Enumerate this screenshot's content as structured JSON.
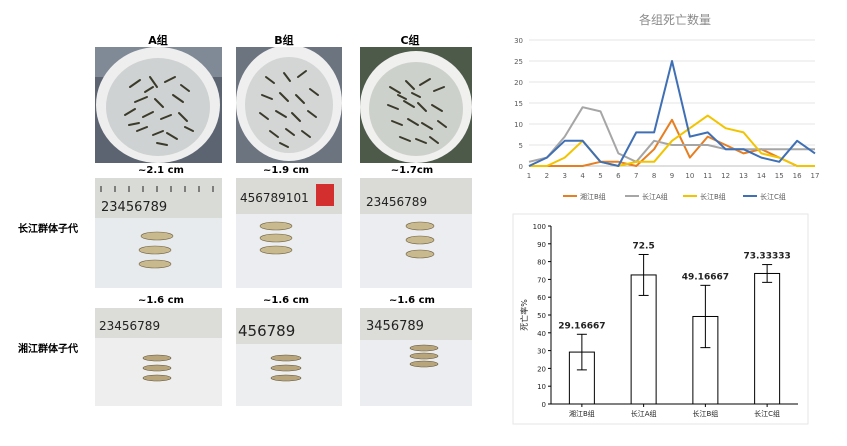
{
  "photos": {
    "column_labels": [
      "A组",
      "B组",
      "C组"
    ],
    "row_labels": [
      "长江群体子代",
      "湘江群体子代"
    ],
    "sizes_row1": [
      "~2.1 cm",
      "~1.9 cm",
      "~1.7cm"
    ],
    "sizes_row2": [
      "~1.6 cm",
      "~1.6 cm",
      "~1.6 cm"
    ],
    "ruler_digits": [
      "23456789",
      "456789101",
      "23456789",
      "23456789",
      "456789",
      "3456789"
    ]
  },
  "colors": {
    "xiang_b": "#E67E22",
    "chang_a": "#A6A6A6",
    "chang_b": "#F2C400",
    "chang_c": "#3F6FB5"
  },
  "chart_data": [
    {
      "type": "line",
      "title": "各组死亡数量",
      "x": [
        1,
        2,
        3,
        4,
        5,
        6,
        7,
        8,
        9,
        10,
        11,
        12,
        13,
        14,
        15,
        16,
        17
      ],
      "ylim": [
        0,
        30
      ],
      "yticks": [
        0,
        5,
        10,
        15,
        20,
        25,
        30
      ],
      "grid": true,
      "legend_position": "bottom",
      "series": [
        {
          "name": "湘江B组",
          "color": "#E67E22",
          "values": [
            0,
            0,
            0,
            0,
            1,
            1,
            0,
            4,
            11,
            2,
            7,
            5,
            3,
            4,
            2,
            0,
            0
          ]
        },
        {
          "name": "长江A组",
          "color": "#A6A6A6",
          "values": [
            1,
            2,
            7,
            14,
            13,
            3,
            1,
            6,
            5,
            5,
            5,
            4,
            4,
            4,
            4,
            4,
            4
          ]
        },
        {
          "name": "长江B组",
          "color": "#F2C400",
          "values": [
            0,
            0,
            2,
            6,
            1,
            0,
            1,
            1,
            6,
            9,
            12,
            9,
            8,
            3,
            2,
            0,
            0
          ]
        },
        {
          "name": "长江C组",
          "color": "#3F6FB5",
          "values": [
            0,
            2,
            6,
            6,
            1,
            0,
            8,
            8,
            25,
            7,
            8,
            4,
            4,
            2,
            1,
            6,
            3
          ]
        }
      ]
    },
    {
      "type": "bar",
      "categories": [
        "湘江B组",
        "长江A组",
        "长江B组",
        "长江C组"
      ],
      "values": [
        29.16667,
        72.5,
        49.16667,
        73.33333
      ],
      "value_labels": [
        "29.16667",
        "72.5",
        "49.16667",
        "73.33333"
      ],
      "errors": [
        10,
        11.5,
        17.5,
        5
      ],
      "ylabel": "死亡率%",
      "ylim": [
        0,
        100
      ],
      "yticks": [
        0,
        10,
        20,
        30,
        40,
        50,
        60,
        70,
        80,
        90,
        100
      ]
    }
  ]
}
